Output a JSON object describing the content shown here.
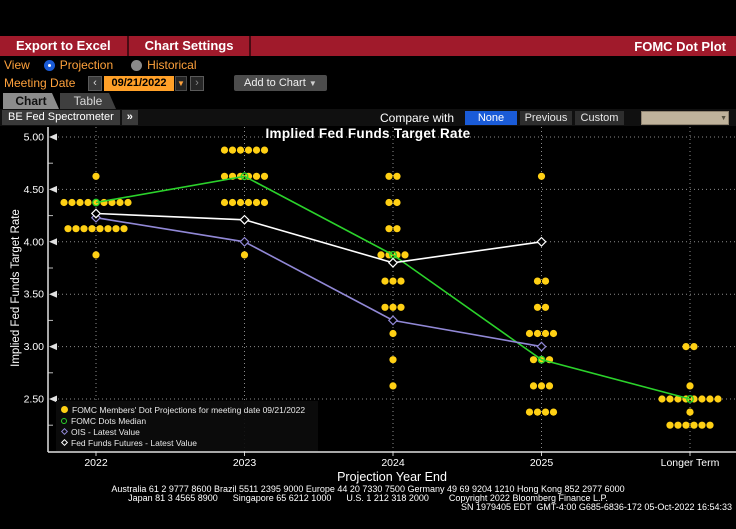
{
  "header": {
    "export_button": "Export to Excel",
    "settings_button": "Chart Settings",
    "app_title": "FOMC Dot Plot"
  },
  "view_row": {
    "label": "View",
    "options": [
      {
        "label": "Projection",
        "selected": true
      },
      {
        "label": "Historical",
        "selected": false
      }
    ]
  },
  "meeting_row": {
    "label": "Meeting Date",
    "prev": "‹",
    "date_value": "09/21/2022",
    "caret": "▼",
    "next": "›",
    "add_button": "Add to Chart",
    "add_caret": "▼"
  },
  "tabs": [
    {
      "label": "Chart",
      "active": true
    },
    {
      "label": "Table",
      "active": false
    }
  ],
  "toolbar": {
    "spectrometer_button": "BE Fed Spectrometer",
    "expand_chevrons": "»",
    "compare_label": "Compare with",
    "compare_options": [
      {
        "label": "None",
        "selected": true
      },
      {
        "label": "Previous",
        "selected": false
      },
      {
        "label": "Custom",
        "selected": false
      }
    ]
  },
  "chart_data": {
    "type": "scatter",
    "title": "Implied Fed Funds Target Rate",
    "xlabel": "Projection Year End",
    "ylabel": "Implied Fed Funds Target Rate",
    "x_categories": [
      "2022",
      "2023",
      "2024",
      "2025",
      "Longer Term"
    ],
    "y_ticks": [
      "5.00",
      "4.50",
      "4.00",
      "3.50",
      "3.00",
      "2.50"
    ],
    "ylim": [
      2.0,
      5.1
    ],
    "grid": "dotted",
    "dot_color": "#ffd014",
    "dots": {
      "2022": [
        {
          "rate": 4.625,
          "count": 1
        },
        {
          "rate": 4.375,
          "count": 9
        },
        {
          "rate": 4.125,
          "count": 8
        },
        {
          "rate": 3.875,
          "count": 1
        }
      ],
      "2023": [
        {
          "rate": 4.875,
          "count": 6
        },
        {
          "rate": 4.625,
          "count": 6
        },
        {
          "rate": 4.375,
          "count": 6
        },
        {
          "rate": 3.875,
          "count": 1
        }
      ],
      "2024": [
        {
          "rate": 4.625,
          "count": 2
        },
        {
          "rate": 4.375,
          "count": 2
        },
        {
          "rate": 4.125,
          "count": 2
        },
        {
          "rate": 3.875,
          "count": 4
        },
        {
          "rate": 3.625,
          "count": 3
        },
        {
          "rate": 3.375,
          "count": 3
        },
        {
          "rate": 3.125,
          "count": 1
        },
        {
          "rate": 2.875,
          "count": 1
        },
        {
          "rate": 2.625,
          "count": 1
        }
      ],
      "2025": [
        {
          "rate": 4.625,
          "count": 1
        },
        {
          "rate": 3.625,
          "count": 2
        },
        {
          "rate": 3.375,
          "count": 2
        },
        {
          "rate": 3.125,
          "count": 4
        },
        {
          "rate": 2.875,
          "count": 3
        },
        {
          "rate": 2.625,
          "count": 3
        },
        {
          "rate": 2.375,
          "count": 4
        }
      ],
      "Longer Term": [
        {
          "rate": 3.0,
          "count": 2
        },
        {
          "rate": 2.625,
          "count": 1
        },
        {
          "rate": 2.5,
          "count": 8
        },
        {
          "rate": 2.375,
          "count": 1
        },
        {
          "rate": 2.25,
          "count": 6
        }
      ]
    },
    "series": [
      {
        "name": "FOMC Dots Median",
        "color": "#2bd22b",
        "marker": "circle",
        "values": [
          {
            "x": "2022",
            "y": 4.375
          },
          {
            "x": "2023",
            "y": 4.625
          },
          {
            "x": "2024",
            "y": 3.875
          },
          {
            "x": "2025",
            "y": 2.875
          },
          {
            "x": "Longer Term",
            "y": 2.5
          }
        ]
      },
      {
        "name": "OIS - Latest Value",
        "color": "#9188d6",
        "marker": "diamond",
        "values": [
          {
            "x": "2022",
            "y": 4.23
          },
          {
            "x": "2023",
            "y": 4.0
          },
          {
            "x": "2024",
            "y": 3.25
          },
          {
            "x": "2025",
            "y": 3.0
          }
        ]
      },
      {
        "name": "Fed Funds Futures - Latest Value",
        "color": "#ffffff",
        "marker": "diamond",
        "values": [
          {
            "x": "2022",
            "y": 4.27
          },
          {
            "x": "2023",
            "y": 4.21
          },
          {
            "x": "2024",
            "y": 3.8
          },
          {
            "x": "2025",
            "y": 4.0
          }
        ]
      }
    ]
  },
  "legend": {
    "items": [
      {
        "marker": "dot",
        "color": "#ffd014",
        "label": "FOMC Members' Dot Projections for meeting date 09/21/2022"
      },
      {
        "marker": "circle",
        "color": "#2bd22b",
        "label": "FOMC Dots Median"
      },
      {
        "marker": "diamond",
        "color": "#9188d6",
        "label": "OIS - Latest Value"
      },
      {
        "marker": "diamond",
        "color": "#ffffff",
        "label": "Fed Funds Futures - Latest Value"
      }
    ]
  },
  "footer": {
    "line1": "Australia 61 2 9777 8600 Brazil 5511 2395 9000 Europe 44 20 7330 7500 Germany 49 69 9204 1210 Hong Kong 852 2977 6000",
    "line2": "Japan 81 3 4565 8900      Singapore 65 6212 1000      U.S. 1 212 318 2000        Copyright 2022 Bloomberg Finance L.P.",
    "line3": "SN 1979405 EDT  GMT-4:00 G685-6836-172 05-Oct-2022 16:54:33"
  },
  "colors": {
    "titlebar_red": "#a01a2b",
    "accent_amber": "#ffa23c",
    "selected_blue": "#1a5bd7",
    "dot_yellow": "#ffd014",
    "median_green": "#2bd22b",
    "ois_purple": "#9188d6",
    "futures_white": "#ffffff",
    "dropdown_tan": "#bfb29b"
  }
}
